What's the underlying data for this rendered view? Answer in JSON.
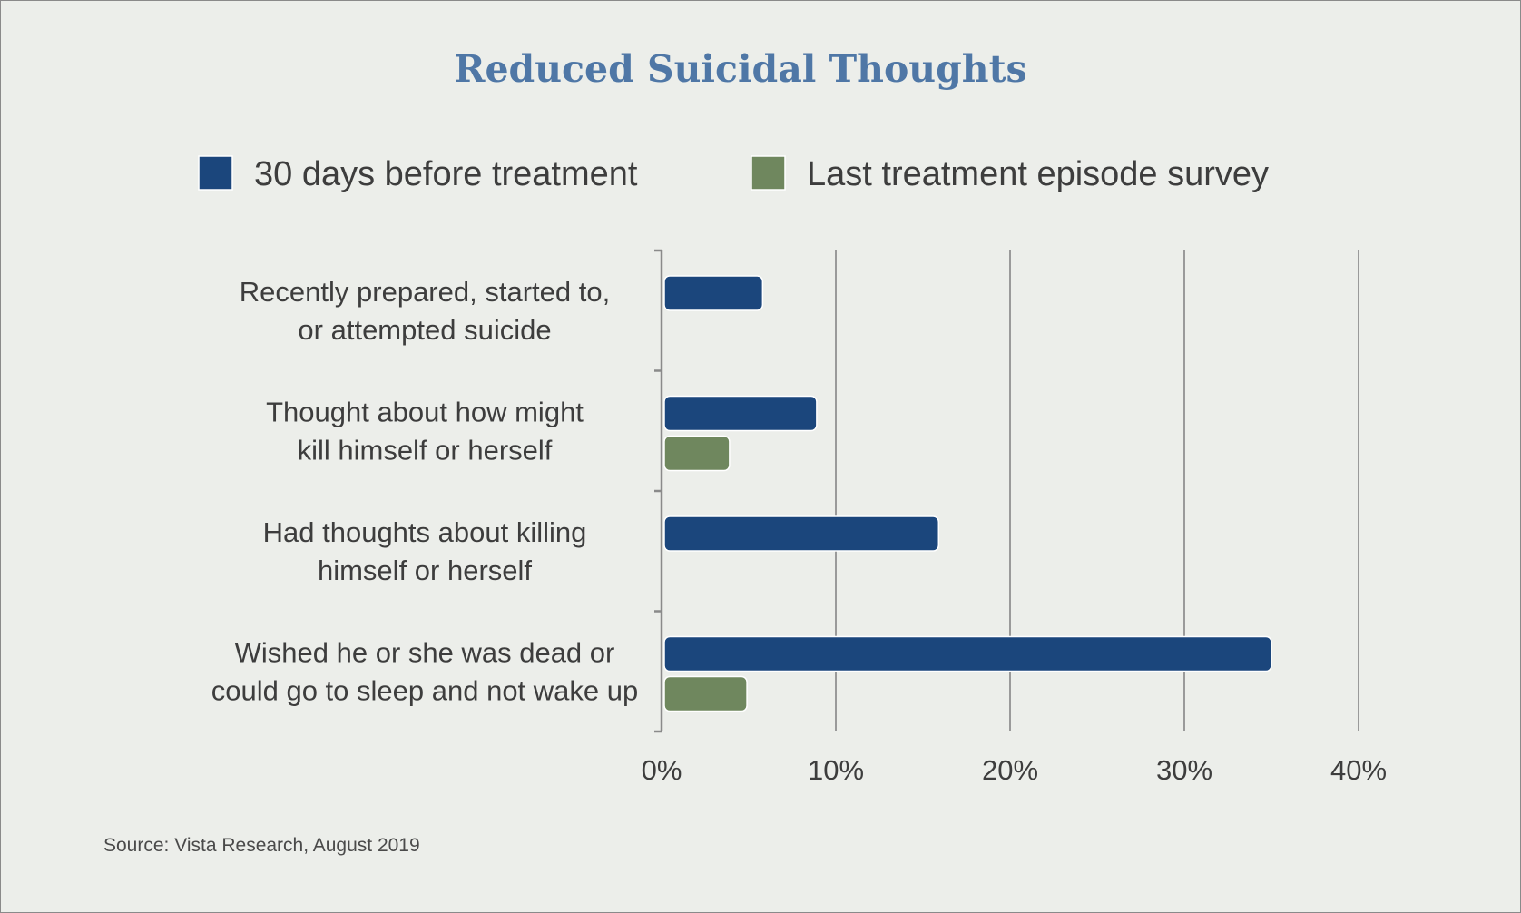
{
  "chart_data": {
    "type": "bar",
    "orientation": "horizontal",
    "title": "Reduced Suicidal Thoughts",
    "categories": [
      [
        "Recently prepared, started to,",
        "or attempted suicide"
      ],
      [
        "Thought about how might",
        "kill himself or herself"
      ],
      [
        "Had thoughts about killing",
        "himself or herself"
      ],
      [
        "Wished he or she was dead or",
        "could go to sleep and not wake up"
      ]
    ],
    "series": [
      {
        "name": "30 days before treatment",
        "color": "#1b467c",
        "values": [
          5.8,
          8.9,
          15.9,
          35.0
        ]
      },
      {
        "name": "Last treatment episode survey",
        "color": "#6f875e",
        "values": [
          null,
          3.9,
          null,
          4.9
        ]
      }
    ],
    "xlim": [
      0,
      40
    ],
    "ticks": [
      0,
      10,
      20,
      30,
      40
    ],
    "tick_labels": [
      "0%",
      "10%",
      "20%",
      "30%",
      "40%"
    ],
    "grid": true,
    "legend_position": "top"
  },
  "source": "Source: Vista Research, August 2019"
}
